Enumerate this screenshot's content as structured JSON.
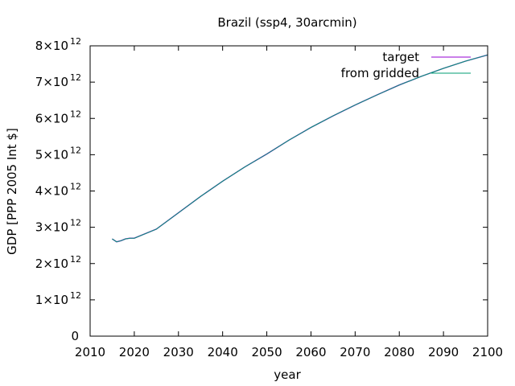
{
  "chart_data": {
    "type": "line",
    "title": "Brazil (ssp4, 30arcmin)",
    "xlabel": "year",
    "ylabel": "GDP [PPP 2005 Int $]",
    "xlim": [
      2010,
      2100
    ],
    "ylim": [
      0,
      8000000000000.0
    ],
    "x_ticks": [
      2010,
      2020,
      2030,
      2040,
      2050,
      2060,
      2070,
      2080,
      2090,
      2100
    ],
    "y_ticks": [
      {
        "value": 0,
        "mantissa": "0",
        "exponent": ""
      },
      {
        "value": 1000000000000.0,
        "mantissa": "1×10",
        "exponent": "12"
      },
      {
        "value": 2000000000000.0,
        "mantissa": "2×10",
        "exponent": "12"
      },
      {
        "value": 3000000000000.0,
        "mantissa": "3×10",
        "exponent": "12"
      },
      {
        "value": 4000000000000.0,
        "mantissa": "4×10",
        "exponent": "12"
      },
      {
        "value": 5000000000000.0,
        "mantissa": "5×10",
        "exponent": "12"
      },
      {
        "value": 6000000000000.0,
        "mantissa": "6×10",
        "exponent": "12"
      },
      {
        "value": 7000000000000.0,
        "mantissa": "7×10",
        "exponent": "12"
      },
      {
        "value": 8000000000000.0,
        "mantissa": "8×10",
        "exponent": "12"
      }
    ],
    "legend_position": "top-right",
    "series": [
      {
        "name": "target",
        "color": "#9400d3",
        "x": [
          2015,
          2016,
          2017,
          2018,
          2019,
          2020,
          2025,
          2030,
          2035,
          2040,
          2045,
          2050,
          2055,
          2060,
          2065,
          2070,
          2075,
          2080,
          2085,
          2090,
          2095,
          2100
        ],
        "y": [
          2680000000000.0,
          2600000000000.0,
          2630000000000.0,
          2680000000000.0,
          2700000000000.0,
          2700000000000.0,
          2950000000000.0,
          3400000000000.0,
          3850000000000.0,
          4270000000000.0,
          4660000000000.0,
          5020000000000.0,
          5400000000000.0,
          5750000000000.0,
          6070000000000.0,
          6370000000000.0,
          6650000000000.0,
          6920000000000.0,
          7160000000000.0,
          7380000000000.0,
          7580000000000.0,
          7750000000000.0
        ]
      },
      {
        "name": "from gridded",
        "color": "#009e73",
        "x": [
          2015,
          2016,
          2017,
          2018,
          2019,
          2020,
          2025,
          2030,
          2035,
          2040,
          2045,
          2050,
          2055,
          2060,
          2065,
          2070,
          2075,
          2080,
          2085,
          2090,
          2095,
          2100
        ],
        "y": [
          2680000000000.0,
          2600000000000.0,
          2630000000000.0,
          2680000000000.0,
          2700000000000.0,
          2700000000000.0,
          2950000000000.0,
          3400000000000.0,
          3850000000000.0,
          4270000000000.0,
          4660000000000.0,
          5020000000000.0,
          5400000000000.0,
          5750000000000.0,
          6070000000000.0,
          6370000000000.0,
          6650000000000.0,
          6920000000000.0,
          7160000000000.0,
          7380000000000.0,
          7580000000000.0,
          7750000000000.0
        ]
      }
    ]
  }
}
